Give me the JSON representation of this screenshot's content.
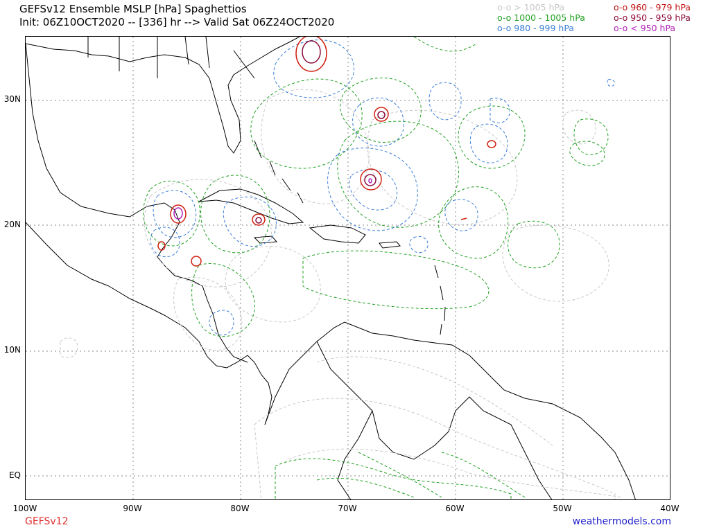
{
  "header": {
    "title_line1": "GEFSv12 Ensemble MSLP [hPa] Spaghettios",
    "title_line2": "Init: 06Z10OCT2020 -- [336] hr --> Valid Sat 06Z24OCT2020"
  },
  "legend": {
    "items": [
      {
        "label": "o-o > 1005 hPa",
        "color": "#c8c8c8"
      },
      {
        "label": "o-o 1000 - 1005 hPa",
        "color": "#22a022"
      },
      {
        "label": "o-o 980 - 999 hPa",
        "color": "#3a7ed8"
      },
      {
        "label": "o-o 960 - 979 hPa",
        "color": "#c01010"
      },
      {
        "label": "o-o 950 - 959 hPa",
        "color": "#8b0a3a"
      },
      {
        "label": "o-o < 950 hPa",
        "color": "#b020b8"
      }
    ]
  },
  "axes": {
    "lat_labels": [
      "30N",
      "20N",
      "10N",
      "EQ"
    ],
    "lon_labels": [
      "100W",
      "90W",
      "80W",
      "70W",
      "60W",
      "50W",
      "40W"
    ]
  },
  "footer": {
    "model": "GEFSv12",
    "model_color": "#e03030",
    "site": "weathermodels.com",
    "site_color": "#2222cc"
  }
}
